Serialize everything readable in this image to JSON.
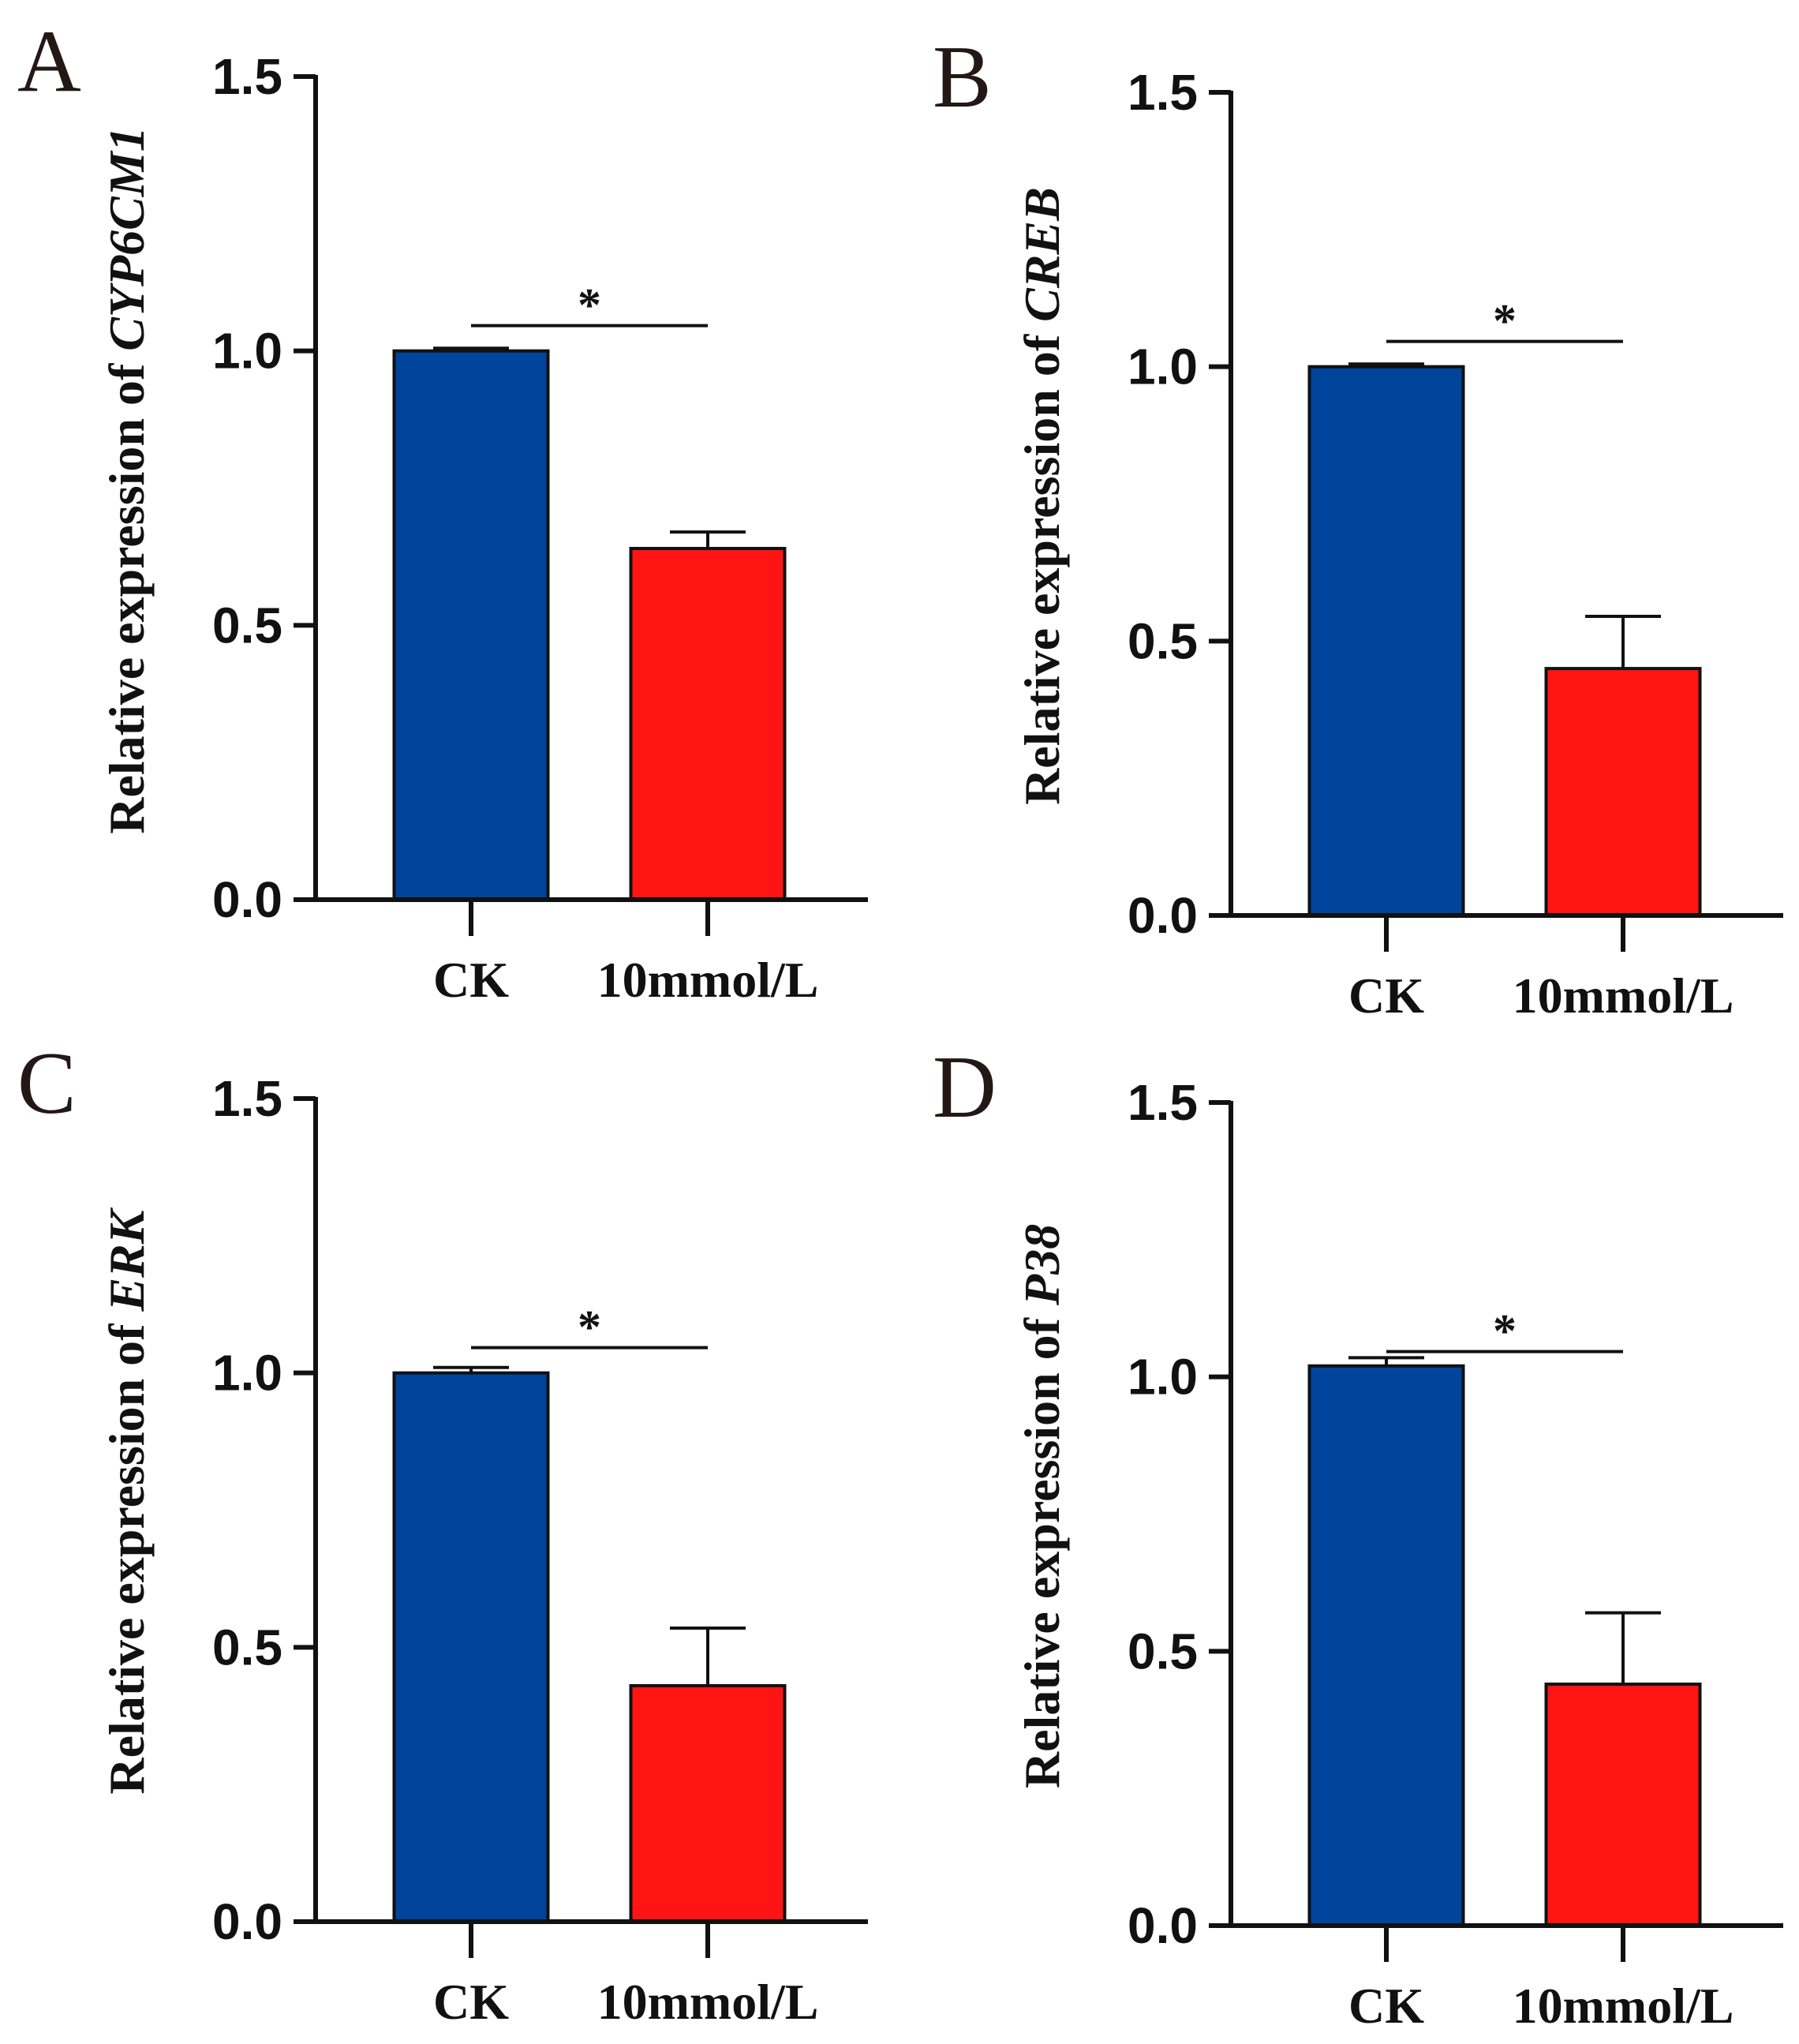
{
  "chart_data": [
    {
      "type": "bar",
      "panel": "A",
      "categories": [
        "CK",
        "10mmol/L"
      ],
      "values": [
        1.0,
        0.64
      ],
      "errors": [
        0.005,
        0.03
      ],
      "colors": [
        "#00449C",
        "#FF1414"
      ],
      "ylabel_prefix": "Relative expression of",
      "ylabel_gene": "CYP6CM1",
      "ylim": [
        0,
        1.5
      ],
      "yticks": [
        "0.0",
        "0.5",
        "1.0",
        "1.5"
      ],
      "significance": "*"
    },
    {
      "type": "bar",
      "panel": "B",
      "categories": [
        "CK",
        "10mmol/L"
      ],
      "values": [
        1.0,
        0.45
      ],
      "errors": [
        0.005,
        0.095
      ],
      "colors": [
        "#00449C",
        "#FF1414"
      ],
      "ylabel_prefix": "Relative expression of",
      "ylabel_gene": "CREB",
      "ylim": [
        0,
        1.5
      ],
      "yticks": [
        "0.0",
        "0.5",
        "1.0",
        "1.5"
      ],
      "significance": "*"
    },
    {
      "type": "bar",
      "panel": "C",
      "categories": [
        "CK",
        "10mmol/L"
      ],
      "values": [
        1.0,
        0.43
      ],
      "errors": [
        0.01,
        0.105
      ],
      "colors": [
        "#00449C",
        "#FF1414"
      ],
      "ylabel_prefix": "Relative expression of",
      "ylabel_gene": "ERK",
      "ylim": [
        0,
        1.5
      ],
      "yticks": [
        "0.0",
        "0.5",
        "1.0",
        "1.5"
      ],
      "significance": "*"
    },
    {
      "type": "bar",
      "panel": "D",
      "categories": [
        "CK",
        "10mmol/L"
      ],
      "values": [
        1.02,
        0.44
      ],
      "errors": [
        0.015,
        0.13
      ],
      "colors": [
        "#00449C",
        "#FF1414"
      ],
      "ylabel_prefix": "Relative expression of",
      "ylabel_gene": "P38",
      "ylim": [
        0,
        1.5
      ],
      "yticks": [
        "0.0",
        "0.5",
        "1.0",
        "1.5"
      ],
      "significance": "*"
    }
  ]
}
